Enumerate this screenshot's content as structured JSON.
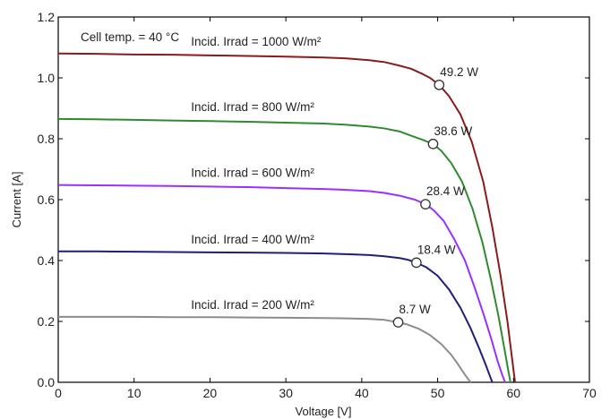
{
  "chart_data": {
    "type": "line",
    "title": "",
    "xlabel": "Voltage [V]",
    "ylabel": "Current [A]",
    "xlim": [
      0,
      70
    ],
    "ylim": [
      0,
      1.2
    ],
    "xticks": [
      0,
      10,
      20,
      30,
      40,
      50,
      60,
      70
    ],
    "xtick_labels": [
      "0",
      "10",
      "20",
      "30",
      "40",
      "50",
      "60",
      "70"
    ],
    "yticks": [
      0,
      0.2,
      0.4,
      0.6,
      0.8,
      1.0,
      1.2
    ],
    "ytick_labels": [
      "0.0",
      "0.2",
      "0.4",
      "0.6",
      "0.8",
      "1.0",
      "1.2"
    ],
    "grid": false,
    "legend": "none",
    "condition_label": "Cell temp. = 40 °C",
    "series": [
      {
        "name": "Incid. Irrad = 1000 W/m²",
        "color": "#8b1a1a",
        "x": [
          0,
          5,
          10,
          15,
          20,
          25,
          30,
          35,
          38,
          41,
          43,
          45,
          46.5,
          48,
          49,
          50.2,
          51.5,
          53,
          54.5,
          56,
          57.2,
          58.3,
          59.2,
          59.8,
          60.2
        ],
        "y": [
          1.08,
          1.079,
          1.077,
          1.076,
          1.074,
          1.072,
          1.07,
          1.067,
          1.064,
          1.058,
          1.052,
          1.04,
          1.03,
          1.013,
          1.0,
          0.977,
          0.94,
          0.88,
          0.79,
          0.66,
          0.51,
          0.35,
          0.2,
          0.08,
          0.0
        ],
        "mpp": {
          "v": 50.2,
          "i": 0.977,
          "label": "49.2 W"
        }
      },
      {
        "name": "Incid. Irrad = 800 W/m²",
        "color": "#2e8b2e",
        "x": [
          0,
          5,
          10,
          15,
          20,
          25,
          30,
          35,
          38,
          41,
          43,
          45,
          46.5,
          48,
          49.4,
          50.5,
          51.8,
          53.2,
          54.6,
          55.9,
          57.0,
          58.0,
          58.8,
          59.3,
          59.6
        ],
        "y": [
          0.865,
          0.864,
          0.862,
          0.86,
          0.858,
          0.856,
          0.853,
          0.85,
          0.846,
          0.84,
          0.834,
          0.824,
          0.81,
          0.797,
          0.783,
          0.76,
          0.72,
          0.66,
          0.57,
          0.46,
          0.34,
          0.22,
          0.11,
          0.04,
          0.0
        ]
      },
      {
        "name": "Incid. Irrad = 600 W/m²",
        "color": "#9b30ff",
        "x": [
          0,
          5,
          10,
          15,
          20,
          25,
          30,
          35,
          38,
          41,
          43,
          45,
          47,
          48.4,
          49.5,
          50.8,
          52.2,
          53.6,
          54.9,
          56.1,
          57.1,
          57.9,
          58.5,
          58.9
        ],
        "y": [
          0.648,
          0.647,
          0.646,
          0.645,
          0.643,
          0.641,
          0.638,
          0.635,
          0.632,
          0.628,
          0.622,
          0.613,
          0.6,
          0.585,
          0.565,
          0.53,
          0.47,
          0.4,
          0.31,
          0.22,
          0.14,
          0.07,
          0.025,
          0.0
        ],
        "mpp": {
          "v": 48.4,
          "i": 0.585,
          "label": "28.4 W"
        }
      },
      {
        "name": "Incid. Irrad = 400 W/m²",
        "color": "#1f1f7a",
        "x": [
          0,
          5,
          10,
          15,
          20,
          25,
          30,
          35,
          38,
          41,
          43,
          45,
          46,
          47.2,
          48.5,
          50,
          51.5,
          53,
          54.3,
          55.5,
          56.3,
          56.9,
          57.2
        ],
        "y": [
          0.43,
          0.43,
          0.429,
          0.428,
          0.427,
          0.426,
          0.425,
          0.423,
          0.421,
          0.418,
          0.414,
          0.408,
          0.403,
          0.393,
          0.378,
          0.35,
          0.305,
          0.245,
          0.18,
          0.11,
          0.06,
          0.02,
          0.0
        ]
      },
      {
        "name": "Incid. Irrad = 200 W/m²",
        "color": "#8c8c8c",
        "x": [
          0,
          5,
          10,
          15,
          20,
          25,
          30,
          35,
          38,
          41,
          43,
          44.8,
          46,
          47.5,
          49,
          50.5,
          51.8,
          52.8,
          53.6,
          54.1,
          54.4
        ],
        "y": [
          0.215,
          0.215,
          0.215,
          0.214,
          0.214,
          0.213,
          0.212,
          0.211,
          0.21,
          0.208,
          0.205,
          0.197,
          0.19,
          0.176,
          0.155,
          0.125,
          0.09,
          0.055,
          0.025,
          0.008,
          0.0
        ],
        "mpp": {
          "v": 44.8,
          "i": 0.197,
          "label": "8.7 W"
        }
      }
    ],
    "power_annotations": [
      {
        "v": 50.2,
        "i": 0.977,
        "label": "49.2 W"
      },
      {
        "v": 49.4,
        "i": 0.783,
        "label": "38.6 W"
      },
      {
        "v": 48.4,
        "i": 0.585,
        "label": "28.4 W"
      },
      {
        "v": 47.2,
        "i": 0.393,
        "label": "18.4 W"
      },
      {
        "v": 44.8,
        "i": 0.197,
        "label": "8.7 W"
      }
    ]
  }
}
